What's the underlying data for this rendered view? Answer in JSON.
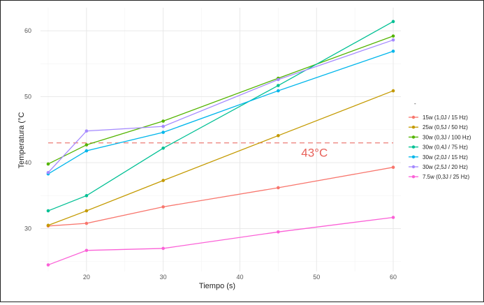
{
  "chart_data": {
    "type": "line",
    "title": "",
    "xlabel": "Tiempo (s)",
    "ylabel": "Temperatura (°C",
    "xlim": [
      14,
      61
    ],
    "ylim": [
      23.5,
      63.5
    ],
    "x_ticks": [
      20,
      30,
      40,
      50,
      60
    ],
    "y_ticks": [
      30,
      40,
      50,
      60
    ],
    "grid": true,
    "legend_title": "-",
    "legend_position": "right",
    "x": [
      15,
      20,
      30,
      45,
      60
    ],
    "series": [
      {
        "name": "15w (1,0J / 15 Hz)",
        "color": "#f8766d",
        "values": [
          30.4,
          30.8,
          33.3,
          36.2,
          39.3
        ]
      },
      {
        "name": "25w (0,5J / 50 Hz)",
        "color": "#c49a00",
        "values": [
          30.5,
          32.7,
          37.3,
          44.1,
          50.9
        ]
      },
      {
        "name": "30w (0,3J / 100 Hz)",
        "color": "#53b400",
        "values": [
          39.8,
          42.7,
          46.3,
          52.8,
          59.2
        ]
      },
      {
        "name": "30w (0,4J / 75 Hz)",
        "color": "#00c094",
        "values": [
          32.7,
          35.0,
          42.2,
          51.7,
          61.4
        ]
      },
      {
        "name": "30w (2,0J / 15 Hz)",
        "color": "#00b6eb",
        "values": [
          38.3,
          41.8,
          44.6,
          50.9,
          56.9
        ]
      },
      {
        "name": "30w (2,5J / 20 Hz)",
        "color": "#a58aff",
        "values": [
          38.5,
          44.8,
          45.5,
          52.6,
          58.6
        ]
      },
      {
        "name": "7.5w (0,3J / 25 Hz)",
        "color": "#fb61d7",
        "values": [
          24.5,
          26.7,
          27.0,
          29.5,
          31.7
        ]
      }
    ],
    "reference_line": {
      "y": 43,
      "color": "#e8615a",
      "label": "43°C",
      "label_x": 48
    }
  }
}
